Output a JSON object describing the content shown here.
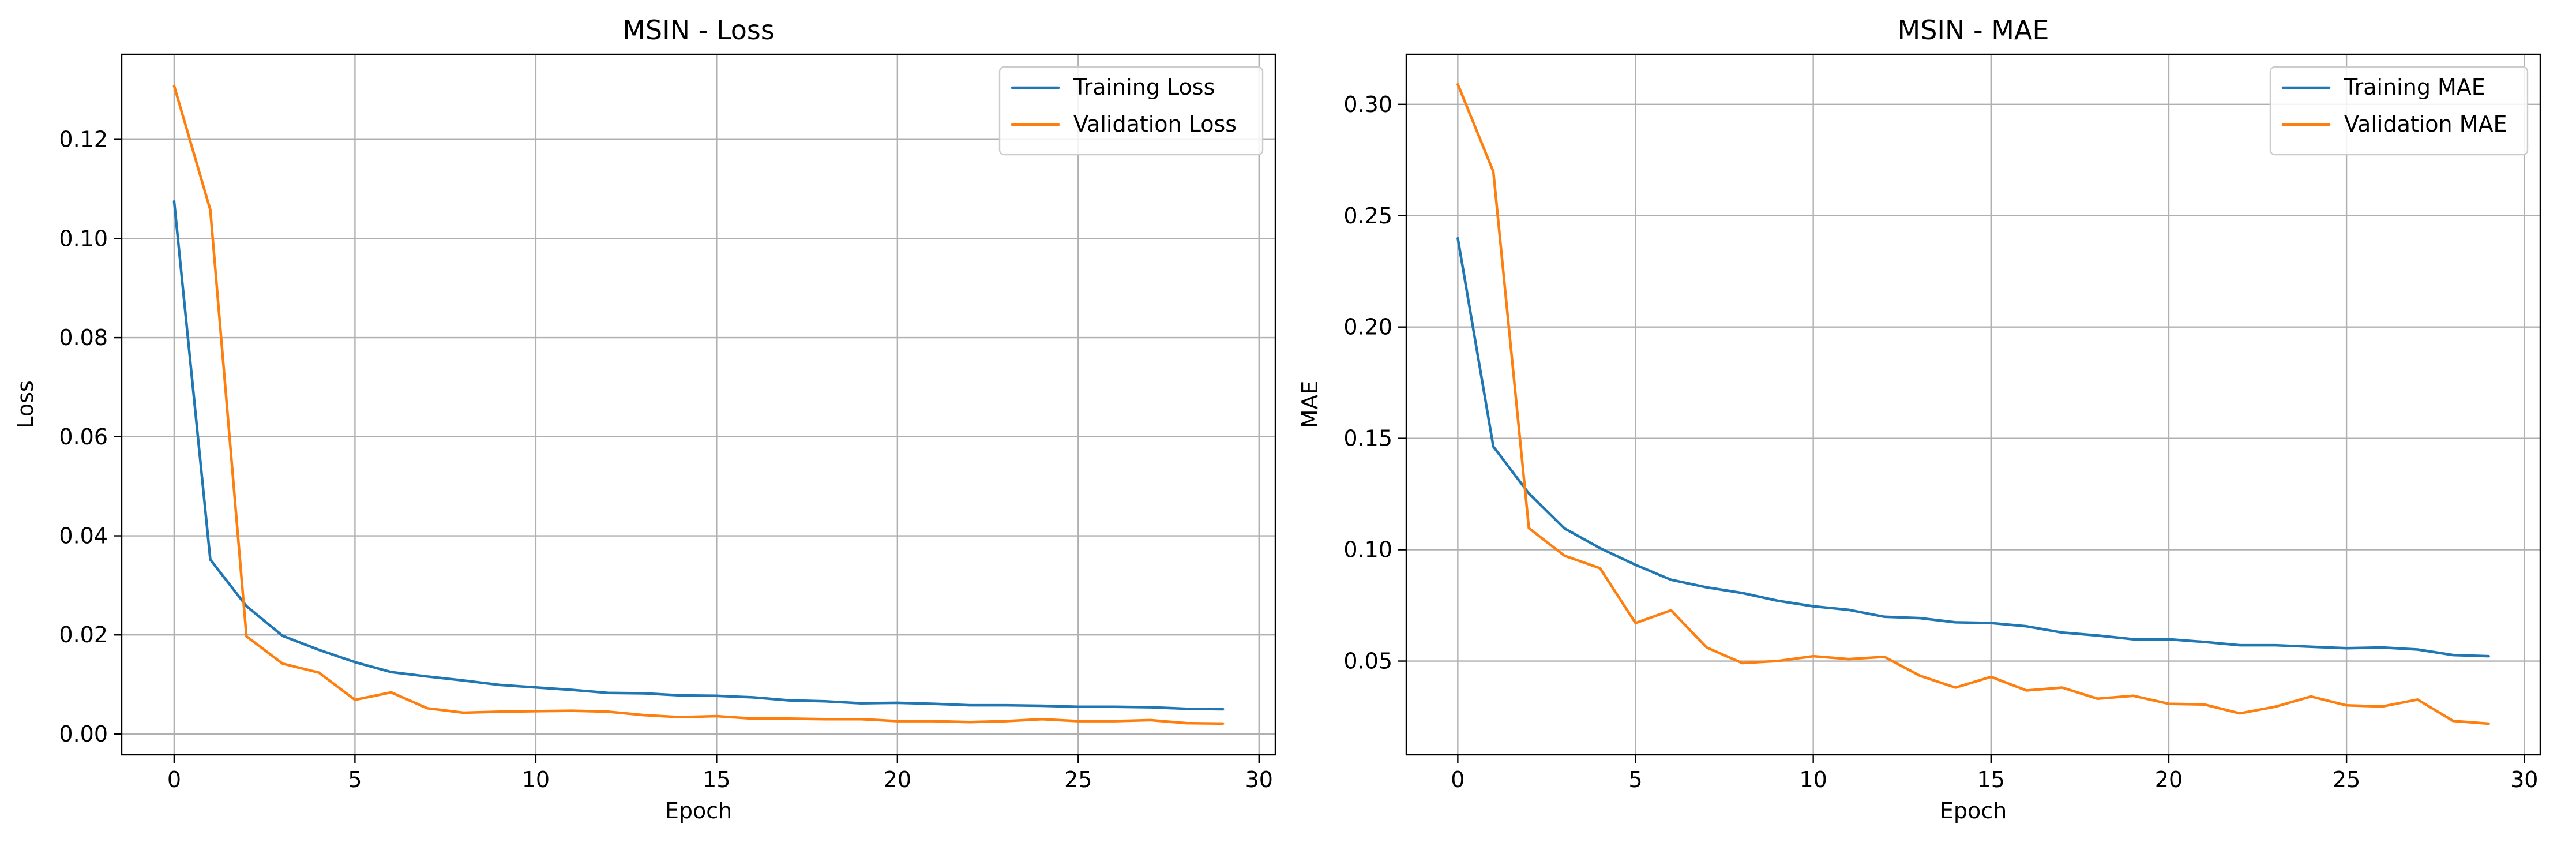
{
  "chart_data": [
    {
      "type": "line",
      "title": "MSIN - Loss",
      "xlabel": "Epoch",
      "ylabel": "Loss",
      "xlim": [
        -1.45,
        30.45
      ],
      "ylim": [
        -0.0042,
        0.1372
      ],
      "xticks": [
        0,
        5,
        10,
        15,
        20,
        25,
        30
      ],
      "yticks": [
        0.0,
        0.02,
        0.04,
        0.06,
        0.08,
        0.1,
        0.12
      ],
      "ytick_decimals": 2,
      "grid": true,
      "legend_position": "top-right",
      "x": [
        0,
        1,
        2,
        3,
        4,
        5,
        6,
        7,
        8,
        9,
        10,
        11,
        12,
        13,
        14,
        15,
        16,
        17,
        18,
        19,
        20,
        21,
        22,
        23,
        24,
        25,
        26,
        27,
        28,
        29
      ],
      "series": [
        {
          "name": "Training Loss",
          "color": "#1f77b4",
          "values": [
            0.1075,
            0.0352,
            0.0258,
            0.0198,
            0.017,
            0.0145,
            0.0125,
            0.0116,
            0.0108,
            0.0099,
            0.0094,
            0.0089,
            0.0083,
            0.0082,
            0.0078,
            0.0077,
            0.0074,
            0.0068,
            0.0066,
            0.0062,
            0.0063,
            0.0061,
            0.0058,
            0.0058,
            0.0057,
            0.0055,
            0.0055,
            0.0054,
            0.0051,
            0.005
          ]
        },
        {
          "name": "Validation Loss",
          "color": "#ff7f0e",
          "values": [
            0.1308,
            0.1058,
            0.0197,
            0.0142,
            0.0124,
            0.0069,
            0.0084,
            0.0052,
            0.0043,
            0.0045,
            0.0046,
            0.0047,
            0.0045,
            0.0038,
            0.0034,
            0.0036,
            0.0031,
            0.0031,
            0.003,
            0.003,
            0.0026,
            0.0026,
            0.0024,
            0.0026,
            0.003,
            0.0026,
            0.0026,
            0.0028,
            0.0022,
            0.0021
          ]
        }
      ]
    },
    {
      "type": "line",
      "title": "MSIN - MAE",
      "xlabel": "Epoch",
      "ylabel": "MAE",
      "xlim": [
        -1.45,
        30.45
      ],
      "ylim": [
        0.0079,
        0.3225
      ],
      "xticks": [
        0,
        5,
        10,
        15,
        20,
        25,
        30
      ],
      "yticks": [
        0.05,
        0.1,
        0.15,
        0.2,
        0.25,
        0.3
      ],
      "ytick_decimals": 2,
      "grid": true,
      "legend_position": "top-right",
      "x": [
        0,
        1,
        2,
        3,
        4,
        5,
        6,
        7,
        8,
        9,
        10,
        11,
        12,
        13,
        14,
        15,
        16,
        17,
        18,
        19,
        20,
        21,
        22,
        23,
        24,
        25,
        26,
        27,
        28,
        29
      ],
      "series": [
        {
          "name": "Training MAE",
          "color": "#1f77b4",
          "values": [
            0.2398,
            0.1463,
            0.1253,
            0.1096,
            0.1007,
            0.0932,
            0.0865,
            0.0831,
            0.0806,
            0.0771,
            0.0746,
            0.073,
            0.0699,
            0.0693,
            0.0674,
            0.0671,
            0.0656,
            0.0628,
            0.0615,
            0.0598,
            0.0598,
            0.0586,
            0.0571,
            0.0571,
            0.0564,
            0.0558,
            0.0561,
            0.0552,
            0.0527,
            0.0522
          ]
        },
        {
          "name": "Validation MAE",
          "color": "#ff7f0e",
          "values": [
            0.309,
            0.2698,
            0.1097,
            0.0973,
            0.0917,
            0.0671,
            0.0728,
            0.0561,
            0.0491,
            0.05,
            0.0522,
            0.0509,
            0.0519,
            0.0434,
            0.0381,
            0.0429,
            0.0368,
            0.0381,
            0.0331,
            0.0344,
            0.0308,
            0.0305,
            0.0265,
            0.0295,
            0.0341,
            0.0301,
            0.0296,
            0.0327,
            0.0231,
            0.0219
          ]
        }
      ]
    }
  ]
}
